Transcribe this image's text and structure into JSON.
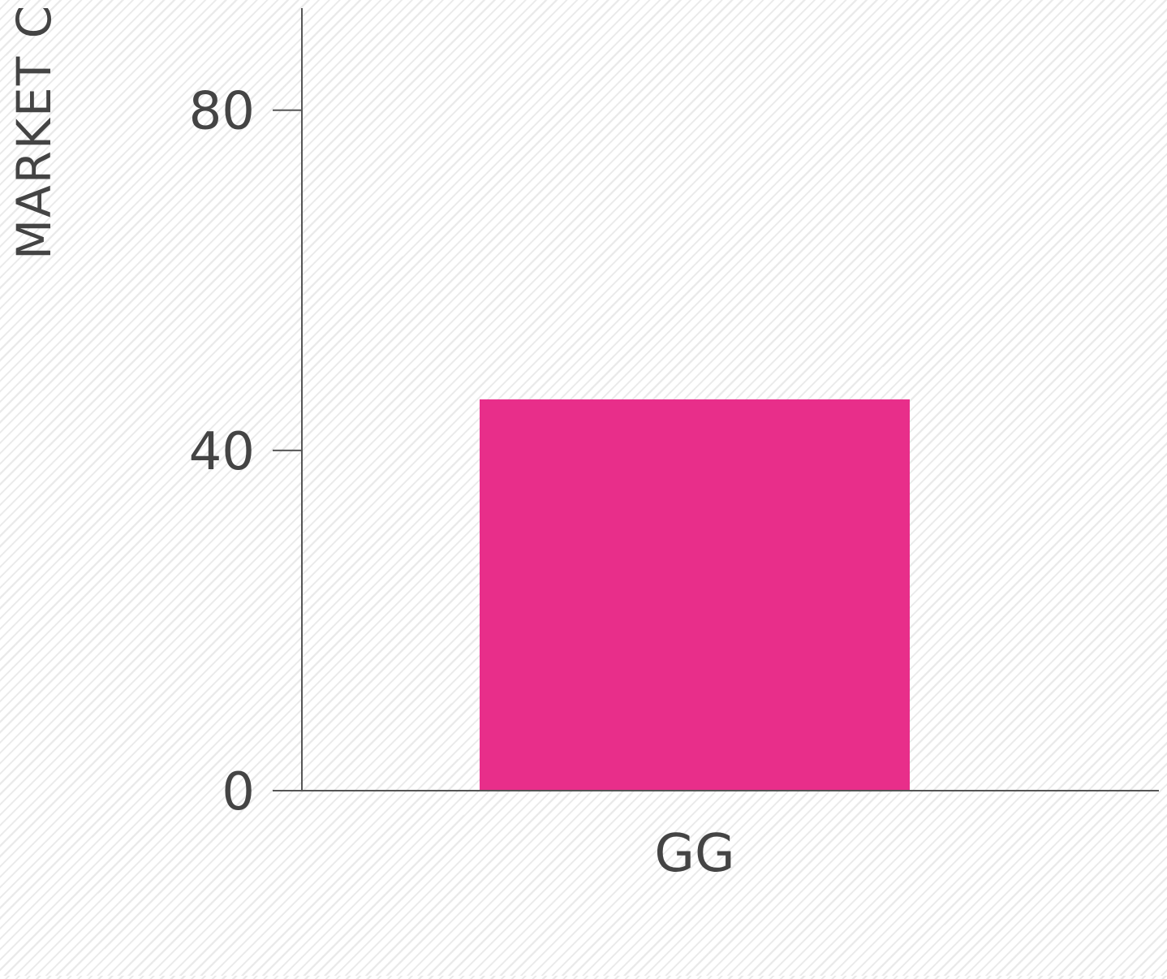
{
  "chart_data": {
    "type": "bar",
    "categories": [
      "GG"
    ],
    "values": [
      46
    ],
    "title": "",
    "xlabel": "",
    "ylabel": "MARKET C",
    "ylim": [
      0,
      92
    ],
    "yticks": [
      0,
      40,
      80
    ],
    "grid": false,
    "bar_color": "#e82e8a",
    "axis_color": "#555555"
  }
}
